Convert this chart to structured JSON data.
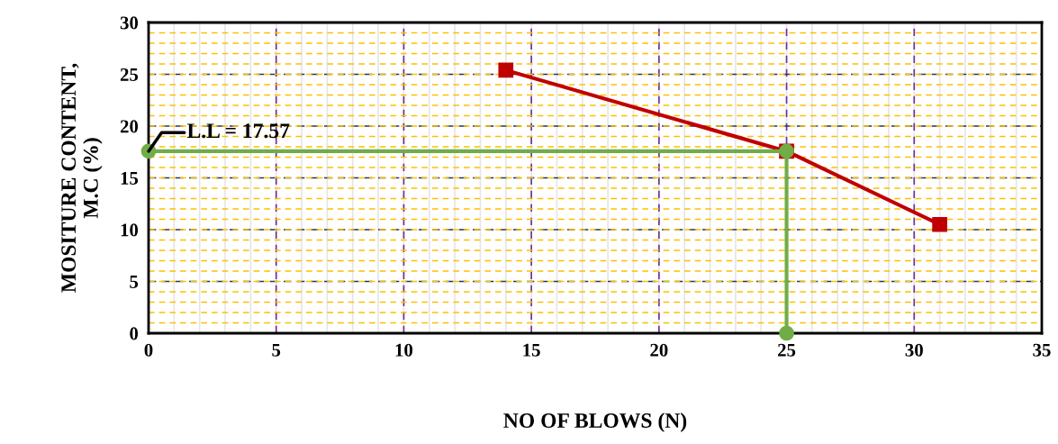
{
  "chart_data": {
    "type": "line",
    "xlabel": "NO OF BLOWS (N)",
    "ylabel": "MOSITURE CONTENT,\nM.C (%)",
    "series": [
      {
        "color": "#c00000",
        "marker": "square",
        "x": [
          14,
          25,
          31
        ],
        "values": [
          25.4,
          17.57,
          10.5
        ]
      },
      {
        "color": "#70ad47",
        "marker": "circle",
        "x": [
          0,
          25,
          25
        ],
        "values": [
          17.57,
          17.57,
          0
        ]
      }
    ],
    "annotations": [
      {
        "text": "L.L = 17.57",
        "x": 0,
        "y": 17.57
      }
    ],
    "xlim": [
      0,
      35
    ],
    "xticks": [
      0,
      5,
      10,
      15,
      20,
      25,
      30,
      35
    ],
    "ylim": [
      0,
      30
    ],
    "yticks": [
      0,
      5,
      10,
      15,
      20,
      25,
      30
    ],
    "grid": true,
    "line_style": "solid"
  }
}
